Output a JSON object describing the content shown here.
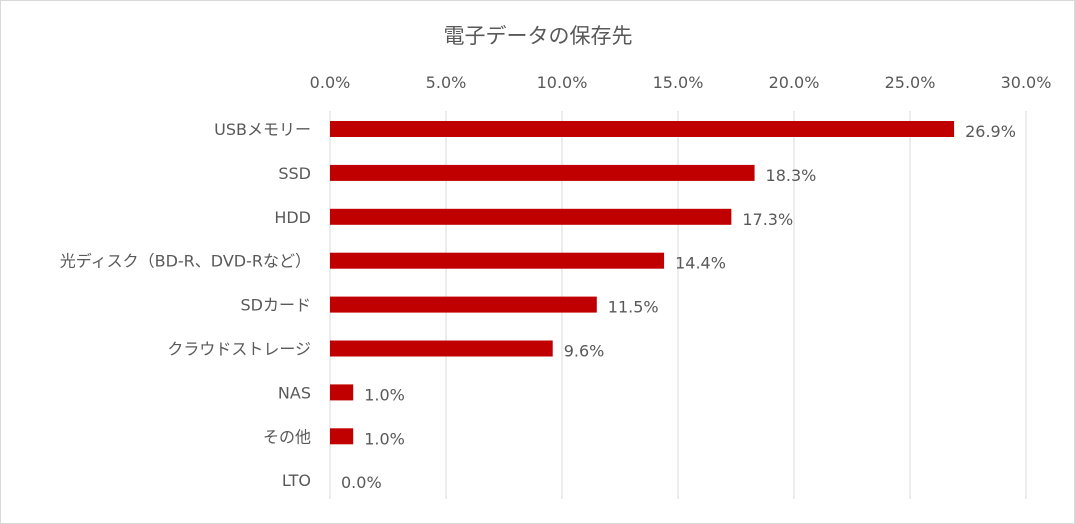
{
  "chart_data": {
    "type": "bar",
    "orientation": "horizontal",
    "title": "電子データの保存先",
    "xlabel": "",
    "ylabel": "",
    "xlim": [
      0,
      30
    ],
    "x_ticks": [
      "0.0%",
      "5.0%",
      "10.0%",
      "15.0%",
      "20.0%",
      "25.0%",
      "30.0%"
    ],
    "x_axis_position": "top",
    "grid": true,
    "legend": "none",
    "bar_color": "#c00000",
    "categories": [
      "USBメモリー",
      "SSD",
      "HDD",
      "光ディスク（BD-R、DVD-Rなど）",
      "SDカード",
      "クラウドストレージ",
      "NAS",
      "その他",
      "LTO"
    ],
    "values": [
      26.9,
      18.3,
      17.3,
      14.4,
      11.5,
      9.6,
      1.0,
      1.0,
      0.0
    ],
    "value_labels": [
      "26.9%",
      "18.3%",
      "17.3%",
      "14.4%",
      "11.5%",
      "9.6%",
      "1.0%",
      "1.0%",
      "0.0%"
    ]
  }
}
